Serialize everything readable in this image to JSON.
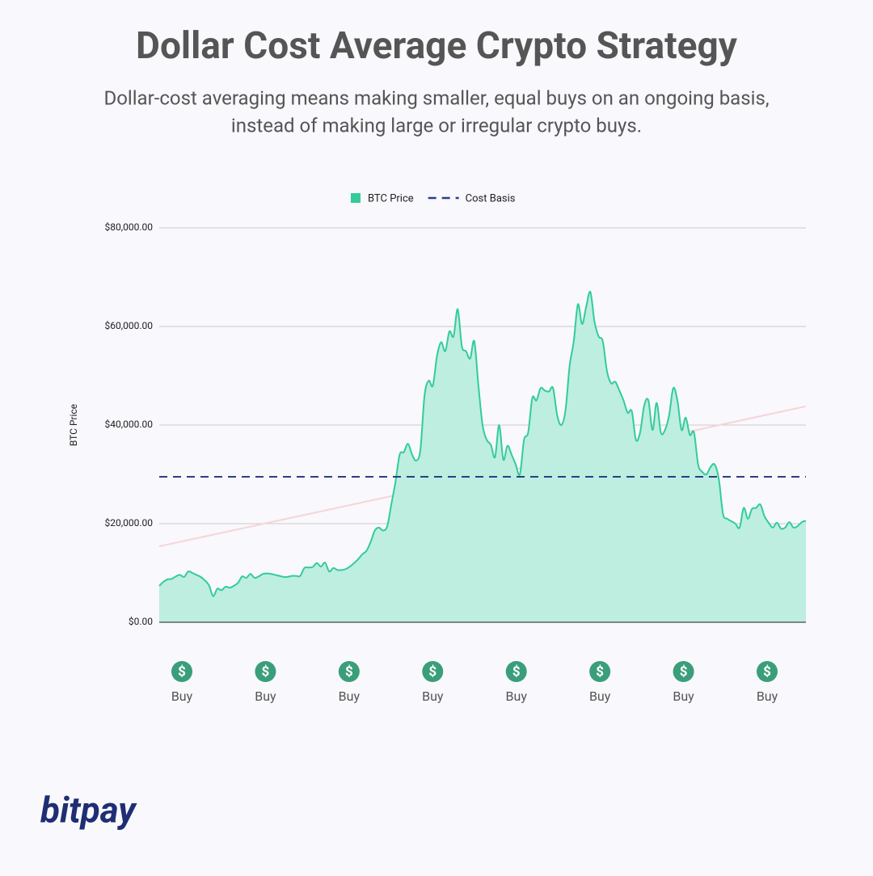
{
  "chart_data": {
    "type": "area",
    "title": "Dollar Cost Average Crypto Strategy",
    "subtitle": [
      "Dollar-cost averaging means making smaller, equal buys on an ongoing basis,",
      "instead of making large or irregular crypto buys."
    ],
    "ylabel": "BTC Price",
    "ylim": [
      0,
      80000
    ],
    "yticks": [
      {
        "value": 0,
        "label": "$0.00"
      },
      {
        "value": 20000,
        "label": "$20,000.00"
      },
      {
        "value": 40000,
        "label": "$40,000.00"
      },
      {
        "value": 60000,
        "label": "$60,000.00"
      },
      {
        "value": 80000,
        "label": "$80,000.00"
      }
    ],
    "grid": true,
    "legend": "top",
    "series": [
      {
        "name": "BTC Price",
        "color": "#33cc99",
        "fill": "#bdeee0",
        "values": [
          7400,
          8200,
          8700,
          8800,
          9300,
          9600,
          9200,
          10300,
          10000,
          9600,
          9200,
          8500,
          7500,
          5300,
          6800,
          6500,
          7200,
          7000,
          7400,
          8000,
          9300,
          9000,
          9800,
          9000,
          9300,
          9800,
          9900,
          9800,
          9600,
          9400,
          9200,
          9200,
          9400,
          9400,
          9400,
          11000,
          11100,
          11200,
          12000,
          11300,
          12100,
          10300,
          11000,
          10600,
          10600,
          10800,
          11300,
          12000,
          12800,
          13800,
          14500,
          16300,
          18600,
          19200,
          18600,
          19500,
          24000,
          28500,
          34000,
          34500,
          36200,
          34000,
          32800,
          35000,
          46000,
          49000,
          48000,
          54000,
          56800,
          55000,
          59000,
          58000,
          63500,
          56000,
          55000,
          53500,
          57000,
          48000,
          40000,
          37000,
          36000,
          33500,
          40000,
          33000,
          35800,
          34000,
          32000,
          30000,
          37000,
          38500,
          45500,
          45000,
          47500,
          47000,
          46800,
          47500,
          42000,
          40000,
          43000,
          52000,
          57000,
          64500,
          60500,
          64000,
          67000,
          61000,
          58000,
          57000,
          51000,
          48500,
          48800,
          47000,
          45000,
          42500,
          42800,
          37000,
          38500,
          44000,
          45000,
          39000,
          44500,
          38500,
          39000,
          42000,
          47500,
          45000,
          39000,
          41500,
          38000,
          38500,
          32000,
          30500,
          30000,
          31500,
          32000,
          29000,
          22000,
          21000,
          20500,
          20000,
          19200,
          23200,
          21000,
          23000,
          23200,
          23900,
          21500,
          20200,
          19200,
          20200,
          19000,
          19200,
          20300,
          19200,
          19500,
          20300,
          20600
        ]
      },
      {
        "name": "Cost Basis",
        "color": "#2b3f87",
        "dashed": true,
        "value": 29500
      }
    ],
    "trend_line": {
      "color": "#f5d5d5",
      "values": [
        15400,
        43800
      ]
    },
    "buy_markers": [
      {
        "icon": "$",
        "label": "Buy"
      },
      {
        "icon": "$",
        "label": "Buy"
      },
      {
        "icon": "$",
        "label": "Buy"
      },
      {
        "icon": "$",
        "label": "Buy"
      },
      {
        "icon": "$",
        "label": "Buy"
      },
      {
        "icon": "$",
        "label": "Buy"
      },
      {
        "icon": "$",
        "label": "Buy"
      },
      {
        "icon": "$",
        "label": "Buy"
      }
    ],
    "marker_color": "#3a9e7a",
    "logo": "bitpay"
  }
}
